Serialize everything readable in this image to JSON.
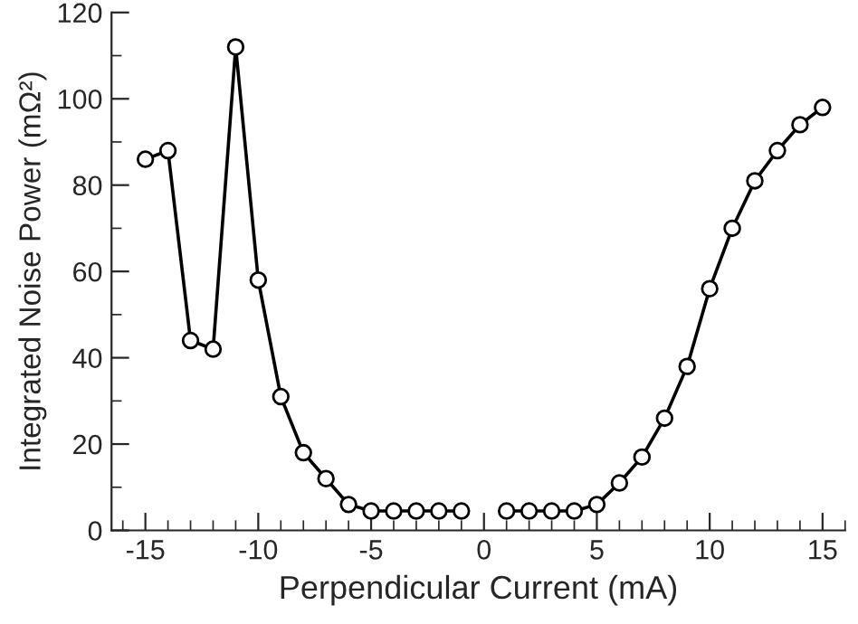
{
  "chart_data": {
    "type": "line",
    "xlabel": "Perpendicular Current (mA)",
    "ylabel": "Integrated Noise Power (mΩ²)",
    "x": [
      -15,
      -14,
      -13,
      -12,
      -11,
      -10,
      -9,
      -8,
      -7,
      -6,
      -5,
      -4,
      -3,
      -2,
      -1,
      0,
      1,
      2,
      3,
      4,
      5,
      6,
      7,
      8,
      9,
      10,
      11,
      12,
      13,
      14,
      15
    ],
    "series": [
      {
        "color": "#000000",
        "values": [
          86,
          88,
          44,
          42,
          112,
          58,
          31,
          18,
          12,
          6,
          4.5,
          4.5,
          4.5,
          4.5,
          4.5,
          null,
          4.5,
          4.5,
          4.5,
          4.5,
          6,
          11,
          17,
          26,
          38,
          56,
          70,
          81,
          88,
          94,
          98
        ]
      }
    ],
    "xlim": [
      -16.5,
      16
    ],
    "ylim": [
      0,
      120
    ],
    "xticks": [
      -15,
      -10,
      -5,
      0,
      5,
      10,
      15
    ],
    "yticks": [
      0,
      20,
      40,
      60,
      80,
      100,
      120
    ],
    "marker": "circle",
    "line_style": "solid",
    "grid": false,
    "legend": false
  }
}
